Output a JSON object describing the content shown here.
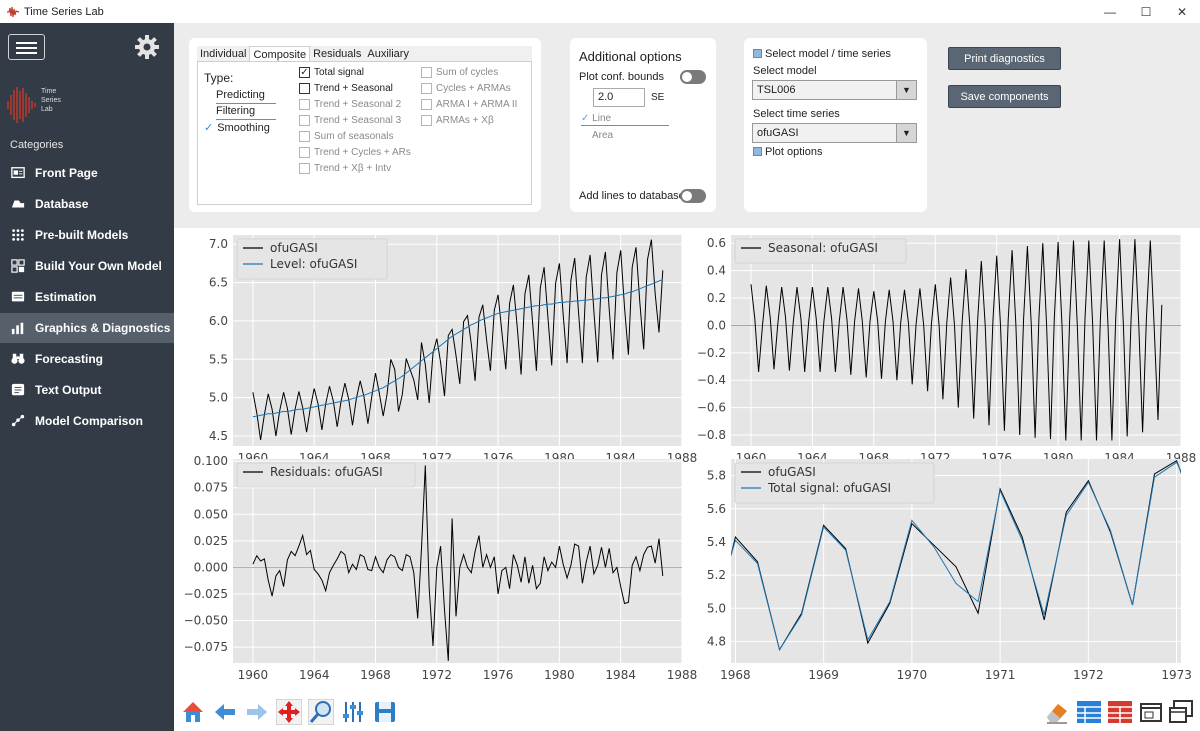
{
  "window": {
    "title": "Time Series Lab",
    "minimize": "—",
    "maximize": "☐",
    "close": "✕"
  },
  "sidebar": {
    "logo_text": [
      "Time",
      "Series",
      "Lab"
    ],
    "categories_label": "Categories",
    "items": [
      {
        "label": "Front Page",
        "icon": "front-page-icon",
        "active": false
      },
      {
        "label": "Database",
        "icon": "database-icon",
        "active": false
      },
      {
        "label": "Pre-built Models",
        "icon": "grid-dots-icon",
        "active": false
      },
      {
        "label": "Build Your Own Model",
        "icon": "build-model-icon",
        "active": false
      },
      {
        "label": "Estimation",
        "icon": "estimation-icon",
        "active": false
      },
      {
        "label": "Graphics & Diagnostics",
        "icon": "bar-chart-icon",
        "active": true
      },
      {
        "label": "Forecasting",
        "icon": "binoculars-icon",
        "active": false
      },
      {
        "label": "Text Output",
        "icon": "text-output-icon",
        "active": false
      },
      {
        "label": "Model Comparison",
        "icon": "model-comparison-icon",
        "active": false
      }
    ]
  },
  "type_panel": {
    "tabs": [
      {
        "label": "Individual",
        "selected": false
      },
      {
        "label": "Composite",
        "selected": true
      },
      {
        "label": "Residuals",
        "selected": false
      },
      {
        "label": "Auxiliary",
        "selected": false
      }
    ],
    "type_label": "Type:",
    "types": [
      {
        "label": "Predicting",
        "checked": false
      },
      {
        "label": "Filtering",
        "checked": false
      },
      {
        "label": "Smoothing",
        "checked": true
      }
    ],
    "checkboxes_col1": [
      {
        "label": "Total signal",
        "checked": true,
        "enabled": true
      },
      {
        "label": "Trend + Seasonal",
        "checked": false,
        "enabled": true
      },
      {
        "label": "Trend + Seasonal 2",
        "checked": false,
        "enabled": false
      },
      {
        "label": "Trend + Seasonal 3",
        "checked": false,
        "enabled": false
      },
      {
        "label": "Sum of seasonals",
        "checked": false,
        "enabled": false
      },
      {
        "label": "Trend + Cycles + ARs",
        "checked": false,
        "enabled": false
      },
      {
        "label": "Trend + Xβ + Intv",
        "checked": false,
        "enabled": false
      }
    ],
    "checkboxes_col2": [
      {
        "label": "Sum of cycles",
        "checked": false,
        "enabled": false
      },
      {
        "label": "Cycles + ARMAs",
        "checked": false,
        "enabled": false
      },
      {
        "label": "ARMA I + ARMA II",
        "checked": false,
        "enabled": false
      },
      {
        "label": "ARMAs + Xβ",
        "checked": false,
        "enabled": false
      }
    ]
  },
  "options_panel": {
    "title": "Additional options",
    "plot_conf_bounds": "Plot conf. bounds",
    "se_value": "2.0",
    "se_label": "SE",
    "line_label": "Line",
    "area_label": "Area",
    "add_lines": "Add lines to database"
  },
  "model_panel": {
    "select_model_ts": "Select model / time series",
    "select_model_label": "Select model",
    "model_value": "TSL006",
    "select_ts_label": "Select time series",
    "ts_value": "ofuGASI",
    "plot_options": "Plot options"
  },
  "buttons": {
    "print_diagnostics": "Print diagnostics",
    "save_components": "Save components"
  },
  "chart_data": [
    {
      "type": "line",
      "position": "top-left",
      "x": [
        1960.0,
        1960.25,
        1960.5,
        1960.75,
        1961.0,
        1961.25,
        1961.5,
        1961.75,
        1962.0,
        1962.25,
        1962.5,
        1962.75,
        1963.0,
        1963.25,
        1963.5,
        1963.75,
        1964.0,
        1964.25,
        1964.5,
        1964.75,
        1965.0,
        1965.25,
        1965.5,
        1965.75,
        1966.0,
        1966.25,
        1966.5,
        1966.75,
        1967.0,
        1967.25,
        1967.5,
        1967.75,
        1968.0,
        1968.25,
        1968.5,
        1968.75,
        1969.0,
        1969.25,
        1969.5,
        1969.75,
        1970.0,
        1970.25,
        1970.5,
        1970.75,
        1971.0,
        1971.25,
        1971.5,
        1971.75,
        1972.0,
        1972.25,
        1972.5,
        1972.75,
        1973.0,
        1973.25,
        1973.5,
        1973.75,
        1974.0,
        1974.25,
        1974.5,
        1974.75,
        1975.0,
        1975.25,
        1975.5,
        1975.75,
        1976.0,
        1976.25,
        1976.5,
        1976.75,
        1977.0,
        1977.25,
        1977.5,
        1977.75,
        1978.0,
        1978.25,
        1978.5,
        1978.75,
        1979.0,
        1979.25,
        1979.5,
        1979.75,
        1980.0,
        1980.25,
        1980.5,
        1980.75,
        1981.0,
        1981.25,
        1981.5,
        1981.75,
        1982.0,
        1982.25,
        1982.5,
        1982.75,
        1983.0,
        1983.25,
        1983.5,
        1983.75,
        1984.0,
        1984.25,
        1984.5,
        1984.75,
        1985.0,
        1985.25,
        1985.5,
        1985.75,
        1986.0,
        1986.25,
        1986.5,
        1986.75
      ],
      "series": [
        {
          "name": "ofuGASI",
          "color": "#000000",
          "values": [
            5.07,
            4.8,
            4.45,
            4.78,
            5.05,
            4.85,
            4.5,
            4.83,
            5.07,
            4.86,
            4.52,
            4.85,
            5.08,
            4.87,
            4.55,
            4.87,
            5.12,
            4.92,
            4.58,
            4.92,
            5.15,
            4.95,
            4.62,
            4.95,
            5.19,
            4.98,
            4.64,
            4.99,
            5.22,
            5.01,
            4.66,
            5.01,
            5.32,
            5.06,
            4.76,
            5.04,
            5.5,
            5.37,
            4.82,
            5.04,
            5.51,
            5.37,
            5.23,
            4.97,
            5.72,
            5.43,
            4.93,
            5.58,
            5.77,
            5.46,
            5.02,
            5.81,
            5.89,
            5.55,
            5.18,
            5.99,
            6.07,
            5.7,
            5.22,
            6.05,
            6.21,
            5.75,
            5.35,
            6.14,
            6.34,
            5.85,
            5.37,
            6.23,
            6.47,
            5.91,
            5.3,
            6.35,
            6.6,
            5.98,
            5.35,
            6.43,
            6.7,
            6.05,
            5.42,
            6.49,
            6.75,
            6.08,
            5.45,
            6.53,
            6.82,
            6.1,
            5.45,
            6.57,
            6.86,
            6.12,
            5.46,
            6.6,
            6.9,
            6.15,
            5.5,
            6.63,
            6.92,
            6.18,
            5.56,
            6.7,
            6.96,
            6.23,
            5.63,
            6.8,
            7.06,
            6.35,
            5.85,
            6.66
          ]
        },
        {
          "name": "Level: ofuGASI",
          "color": "#1f77b4",
          "values": [
            4.75,
            4.76,
            4.77,
            4.78,
            4.79,
            4.79,
            4.8,
            4.81,
            4.82,
            4.82,
            4.83,
            4.84,
            4.85,
            4.85,
            4.86,
            4.87,
            4.88,
            4.89,
            4.9,
            4.91,
            4.92,
            4.93,
            4.94,
            4.95,
            4.96,
            4.97,
            4.99,
            5.0,
            5.02,
            5.03,
            5.05,
            5.07,
            5.09,
            5.11,
            5.13,
            5.16,
            5.19,
            5.22,
            5.25,
            5.28,
            5.32,
            5.36,
            5.4,
            5.44,
            5.48,
            5.52,
            5.56,
            5.6,
            5.64,
            5.68,
            5.72,
            5.76,
            5.8,
            5.83,
            5.86,
            5.89,
            5.92,
            5.95,
            5.97,
            6.0,
            6.02,
            6.04,
            6.06,
            6.08,
            6.1,
            6.11,
            6.12,
            6.13,
            6.14,
            6.15,
            6.16,
            6.17,
            6.18,
            6.19,
            6.2,
            6.2,
            6.21,
            6.22,
            6.22,
            6.23,
            6.24,
            6.24,
            6.25,
            6.25,
            6.26,
            6.26,
            6.27,
            6.27,
            6.28,
            6.28,
            6.29,
            6.3,
            6.3,
            6.31,
            6.32,
            6.33,
            6.34,
            6.35,
            6.37,
            6.38,
            6.4,
            6.42,
            6.44,
            6.46,
            6.48,
            6.5,
            6.52,
            6.54
          ]
        }
      ],
      "xlim": [
        1958.7,
        1988
      ],
      "ylim": [
        4.37,
        7.12
      ],
      "xticks": [
        1960,
        1964,
        1968,
        1972,
        1976,
        1980,
        1984,
        1988
      ],
      "yticks": [
        4.5,
        5.0,
        5.5,
        6.0,
        6.5,
        7.0
      ],
      "ytick_labels": [
        "4.5",
        "5.0",
        "5.5",
        "6.0",
        "6.5",
        "7.0"
      ],
      "grid": true,
      "legend": "top-left"
    },
    {
      "type": "line",
      "position": "top-right",
      "x_from": "panel-0",
      "series": [
        {
          "name": "Seasonal: ofuGASI",
          "color": "#000000",
          "values": [
            0.3,
            0.05,
            -0.34,
            0.0,
            0.29,
            0.06,
            -0.32,
            0.01,
            0.28,
            0.06,
            -0.33,
            0.02,
            0.28,
            0.05,
            -0.34,
            0.02,
            0.28,
            0.05,
            -0.34,
            0.03,
            0.28,
            0.05,
            -0.34,
            0.03,
            0.28,
            0.04,
            -0.36,
            0.03,
            0.27,
            0.03,
            -0.38,
            0.03,
            0.25,
            0.03,
            -0.39,
            0.03,
            0.26,
            0.03,
            -0.4,
            0.02,
            0.26,
            0.02,
            -0.43,
            0.01,
            0.27,
            0.0,
            -0.48,
            0.01,
            0.3,
            0.0,
            -0.54,
            0.02,
            0.35,
            0.0,
            -0.6,
            0.02,
            0.41,
            0.0,
            -0.68,
            0.02,
            0.47,
            0.0,
            -0.73,
            0.03,
            0.51,
            0.0,
            -0.77,
            0.04,
            0.55,
            0.0,
            -0.8,
            0.05,
            0.58,
            0.0,
            -0.82,
            0.05,
            0.6,
            0.0,
            -0.83,
            0.05,
            0.61,
            0.0,
            -0.84,
            0.05,
            0.62,
            0.0,
            -0.84,
            0.05,
            0.62,
            0.0,
            -0.84,
            0.05,
            0.62,
            0.0,
            -0.84,
            0.05,
            0.63,
            0.0,
            -0.81,
            0.05,
            0.63,
            0.0,
            -0.78,
            0.05,
            0.62,
            0.0,
            -0.69,
            0.15
          ]
        }
      ],
      "xlim": [
        1958.7,
        1988
      ],
      "ylim": [
        -0.88,
        0.66
      ],
      "xticks": [
        1960,
        1964,
        1968,
        1972,
        1976,
        1980,
        1984,
        1988
      ],
      "yticks": [
        -0.8,
        -0.6,
        -0.4,
        -0.2,
        0.0,
        0.2,
        0.4,
        0.6
      ],
      "ytick_labels": [
        "−0.8",
        "−0.6",
        "−0.4",
        "−0.2",
        "0.0",
        "0.2",
        "0.4",
        "0.6"
      ],
      "zero_line": true,
      "grid": true,
      "legend": "top-left"
    },
    {
      "type": "line",
      "position": "bottom-left",
      "x_from": "panel-0",
      "series": [
        {
          "name": "Residuals: ofuGASI",
          "color": "#000000",
          "values": [
            0.003,
            0.011,
            0.006,
            0.008,
            -0.012,
            -0.027,
            -0.008,
            -0.003,
            -0.018,
            0.007,
            0.015,
            0.011,
            0.02,
            0.03,
            0.012,
            0.016,
            -0.002,
            -0.006,
            -0.012,
            -0.022,
            -0.005,
            0.002,
            0.008,
            0.015,
            0.012,
            -0.005,
            0.003,
            -0.002,
            0.012,
            0.01,
            -0.002,
            -0.003,
            0.01,
            0.0,
            -0.005,
            0.007,
            0.012,
            0.01,
            0.0,
            -0.003,
            0.012,
            0.01,
            -0.005,
            -0.048,
            0.018,
            0.096,
            -0.02,
            -0.074,
            0.0,
            0.02,
            -0.04,
            -0.088,
            0.046,
            -0.046,
            0.0,
            0.012,
            0.0,
            -0.005,
            0.015,
            0.03,
            0.0,
            0.012,
            0.0,
            0.01,
            -0.025,
            -0.003,
            0.0,
            -0.02,
            0.012,
            0.002,
            -0.014,
            0.01,
            -0.015,
            0.002,
            -0.02,
            -0.015,
            0.01,
            -0.003,
            0.005,
            0.0,
            0.02,
            0.003,
            -0.01,
            0.002,
            0.022,
            0.02,
            -0.015,
            0.005,
            0.02,
            -0.006,
            0.002,
            0.019,
            0.0,
            0.018,
            -0.005,
            0.0,
            -0.018,
            -0.034,
            -0.033,
            0.002,
            0.01,
            -0.003,
            0.012,
            0.019,
            0.02,
            0.004,
            0.027,
            -0.008
          ]
        }
      ],
      "xlim": [
        1958.7,
        1988
      ],
      "ylim": [
        -0.09,
        0.102
      ],
      "xticks": [
        1960,
        1964,
        1968,
        1972,
        1976,
        1980,
        1984,
        1988
      ],
      "yticks": [
        -0.075,
        -0.05,
        -0.025,
        0.0,
        0.025,
        0.05,
        0.075,
        0.1
      ],
      "ytick_labels": [
        "−0.075",
        "−0.050",
        "−0.025",
        "0.000",
        "0.025",
        "0.050",
        "0.075",
        "0.100"
      ],
      "zero_line": true,
      "grid": true,
      "legend": "top-left"
    },
    {
      "type": "line",
      "position": "bottom-right",
      "x": [
        1967.95,
        1968.0,
        1968.25,
        1968.5,
        1968.75,
        1969.0,
        1969.25,
        1969.5,
        1969.75,
        1970.0,
        1970.25,
        1970.5,
        1970.75,
        1971.0,
        1971.25,
        1971.5,
        1971.75,
        1972.0,
        1972.25,
        1972.5,
        1972.75,
        1973.0,
        1973.1
      ],
      "series": [
        {
          "name": "ofuGASI",
          "color": "#000000",
          "values": [
            5.32,
            5.43,
            5.28,
            4.75,
            4.97,
            5.5,
            5.36,
            4.79,
            5.03,
            5.51,
            5.38,
            5.25,
            4.97,
            5.72,
            5.43,
            4.93,
            5.58,
            5.77,
            5.46,
            5.02,
            5.81,
            5.89,
            5.75
          ]
        },
        {
          "name": "Total signal: ofuGASI",
          "color": "#1f77b4",
          "values": [
            5.32,
            5.41,
            5.27,
            4.75,
            4.96,
            5.49,
            5.35,
            4.81,
            5.04,
            5.53,
            5.37,
            5.15,
            5.04,
            5.71,
            5.41,
            4.96,
            5.56,
            5.76,
            5.47,
            5.02,
            5.79,
            5.88,
            5.77
          ]
        }
      ],
      "xlim": [
        1967.95,
        1973.05
      ],
      "ylim": [
        4.67,
        5.9
      ],
      "xticks": [
        1968,
        1969,
        1970,
        1971,
        1972,
        1973
      ],
      "yticks": [
        4.8,
        5.0,
        5.2,
        5.4,
        5.6,
        5.8
      ],
      "ytick_labels": [
        "4.8",
        "5.0",
        "5.2",
        "5.4",
        "5.6",
        "5.8"
      ],
      "grid": true,
      "legend": "top-left"
    }
  ],
  "toolbar": [
    "home-icon",
    "back-arrow-icon",
    "forward-arrow-icon",
    "pan-icon",
    "zoom-icon",
    "subplots-icon",
    "save-icon"
  ],
  "toolbar_right": [
    "eraser-icon",
    "layout-blue-icon",
    "layout-red-icon",
    "window-icon",
    "window-double-icon"
  ],
  "colors": {
    "sidebar": "#333c46",
    "sidebar_active": "#56606b",
    "plot_bg": "#e5e5e5",
    "series_blue": "#1f77b4",
    "button": "#5a6673"
  }
}
